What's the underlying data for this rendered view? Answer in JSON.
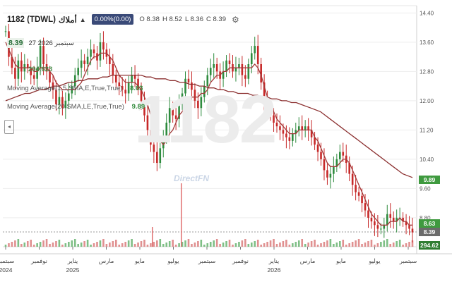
{
  "header": {
    "symbol": "1182 (TDWL)",
    "name": "أملاك",
    "change": "0.00%(0.00)",
    "open": "O 8.38",
    "high": "H 8.52",
    "low": "L 8.36",
    "close": "C 8.39",
    "date": "27 سبتمبر 2026",
    "last": "8.39",
    "volume": "294.623",
    "ma1_label": "Moving Average(1,5,SMA,E,True,True)",
    "ma1_value": "8.63",
    "ma2_label": "Moving Average(20,SMA,LE,True,True)",
    "ma2_value": "9.89"
  },
  "watermark": {
    "symbol": "1182",
    "brand": "DirectFN"
  },
  "badges": {
    "ma2": "9.89",
    "ma1": "8.63",
    "last": "8.39",
    "volume": "294.62"
  },
  "chart_data": {
    "type": "line",
    "title": "1182 (TDWL)",
    "ylim": [
      8.2,
      14.6
    ],
    "y_ticks": [
      "14.40",
      "13.60",
      "12.80",
      "12.00",
      "11.20",
      "10.40",
      "9.60",
      "8.80"
    ],
    "x_ticks": [
      {
        "label": "سبتمبر",
        "year": "2024"
      },
      {
        "label": "نوفمبر",
        "year": ""
      },
      {
        "label": "يناير",
        "year": "2025"
      },
      {
        "label": "مارس",
        "year": ""
      },
      {
        "label": "مايو",
        "year": ""
      },
      {
        "label": "يوليو",
        "year": ""
      },
      {
        "label": "سبتمبر",
        "year": ""
      },
      {
        "label": "نوفمبر",
        "year": ""
      },
      {
        "label": "يناير",
        "year": "2026"
      },
      {
        "label": "مارس",
        "year": ""
      },
      {
        "label": "مايو",
        "year": ""
      },
      {
        "label": "يوليو",
        "year": ""
      },
      {
        "label": "سبتمبر",
        "year": ""
      }
    ],
    "price_close": [
      13.9,
      13.2,
      12.9,
      12.6,
      13.1,
      12.8,
      13.0,
      12.9,
      12.7,
      12.6,
      12.9,
      13.5,
      13.0,
      12.8,
      12.5,
      12.3,
      11.9,
      12.1,
      11.8,
      12.0,
      12.2,
      12.4,
      12.7,
      12.9,
      13.1,
      13.0,
      13.2,
      13.4,
      13.3,
      13.1,
      13.6,
      13.4,
      13.2,
      13.0,
      12.7,
      12.5,
      12.4,
      12.3,
      12.2,
      12.5,
      12.7,
      12.6,
      12.3,
      12.0,
      11.6,
      11.2,
      10.8,
      10.6,
      10.3,
      10.7,
      11.0,
      11.4,
      11.8,
      11.6,
      11.5,
      11.9,
      12.2,
      12.6,
      12.5,
      12.3,
      12.0,
      11.8,
      12.1,
      12.4,
      12.7,
      12.9,
      13.0,
      12.8,
      12.6,
      12.8,
      13.1,
      13.0,
      12.8,
      12.9,
      13.0,
      12.7,
      12.6,
      13.0,
      13.3,
      13.5,
      13.0,
      12.5,
      12.0,
      11.8,
      11.6,
      11.4,
      11.3,
      11.2,
      11.1,
      11.0,
      10.9,
      11.1,
      11.2,
      11.3,
      11.2,
      11.3,
      11.2,
      11.0,
      10.8,
      10.6,
      10.4,
      10.1,
      9.9,
      10.0,
      10.2,
      10.4,
      10.6,
      10.5,
      10.3,
      10.0,
      9.7,
      9.5,
      9.4,
      9.2,
      9.0,
      8.8,
      8.7,
      8.6,
      8.5,
      8.5,
      8.6,
      8.9,
      8.8,
      8.7,
      8.8,
      8.8,
      8.7,
      8.6,
      8.5,
      8.4
    ],
    "ma_short": [
      13.6,
      13.4,
      13.2,
      13.0,
      12.9,
      12.9,
      12.9,
      12.9,
      12.9,
      12.8,
      12.8,
      12.9,
      12.9,
      12.9,
      12.8,
      12.7,
      12.5,
      12.4,
      12.3,
      12.3,
      12.3,
      12.3,
      12.3,
      12.4,
      12.5,
      12.7,
      12.9,
      13.1,
      13.2,
      13.2,
      13.3,
      13.3,
      13.3,
      13.2,
      13.1,
      12.9,
      12.7,
      12.6,
      12.5,
      12.5,
      12.5,
      12.5,
      12.4,
      12.3,
      12.1,
      11.9,
      11.6,
      11.3,
      11.0,
      10.9,
      10.8,
      10.9,
      11.1,
      11.2,
      11.4,
      11.6,
      11.7,
      11.9,
      12.0,
      12.1,
      12.1,
      12.1,
      12.2,
      12.2,
      12.3,
      12.5,
      12.6,
      12.7,
      12.7,
      12.8,
      12.8,
      12.9,
      12.9,
      12.9,
      12.9,
      12.9,
      12.9,
      12.9,
      12.9,
      13.0,
      12.9,
      12.7,
      12.4,
      12.1,
      11.9,
      11.7,
      11.5,
      11.4,
      11.3,
      11.2,
      11.1,
      11.1,
      11.1,
      11.2,
      11.2,
      11.2,
      11.2,
      11.2,
      11.0,
      10.9,
      10.7,
      10.5,
      10.3,
      10.2,
      10.2,
      10.2,
      10.3,
      10.4,
      10.4,
      10.3,
      10.1,
      9.9,
      9.7,
      9.5,
      9.3,
      9.1,
      8.9,
      8.8,
      8.7,
      8.6,
      8.6,
      8.6,
      8.7,
      8.7,
      8.7,
      8.8,
      8.7,
      8.7,
      8.6,
      8.6
    ],
    "ma_long": [
      12.0,
      12.05,
      12.1,
      12.15,
      12.2,
      12.2,
      12.25,
      12.3,
      12.3,
      12.35,
      12.4,
      12.4,
      12.45,
      12.5,
      12.5,
      12.55,
      12.55,
      12.6,
      12.6,
      12.6,
      12.65,
      12.65,
      12.7,
      12.7,
      12.7,
      12.7,
      12.7,
      12.7,
      12.7,
      12.65,
      12.65,
      12.6,
      12.6,
      12.6,
      12.55,
      12.55,
      12.5,
      12.5,
      12.45,
      12.45,
      12.4,
      12.4,
      12.35,
      12.35,
      12.3,
      12.3,
      12.25,
      12.25,
      12.2,
      12.2,
      12.2,
      12.15,
      12.15,
      12.1,
      12.1,
      12.05,
      12.05,
      12.0,
      12.0,
      11.95,
      11.95,
      11.9,
      11.85,
      11.8,
      11.75,
      11.7,
      11.6,
      11.5,
      11.4,
      11.3,
      11.2,
      11.1,
      11.0,
      10.9,
      10.8,
      10.7,
      10.6,
      10.5,
      10.4,
      10.3,
      10.2,
      10.1,
      10.0,
      9.95,
      9.9
    ]
  }
}
